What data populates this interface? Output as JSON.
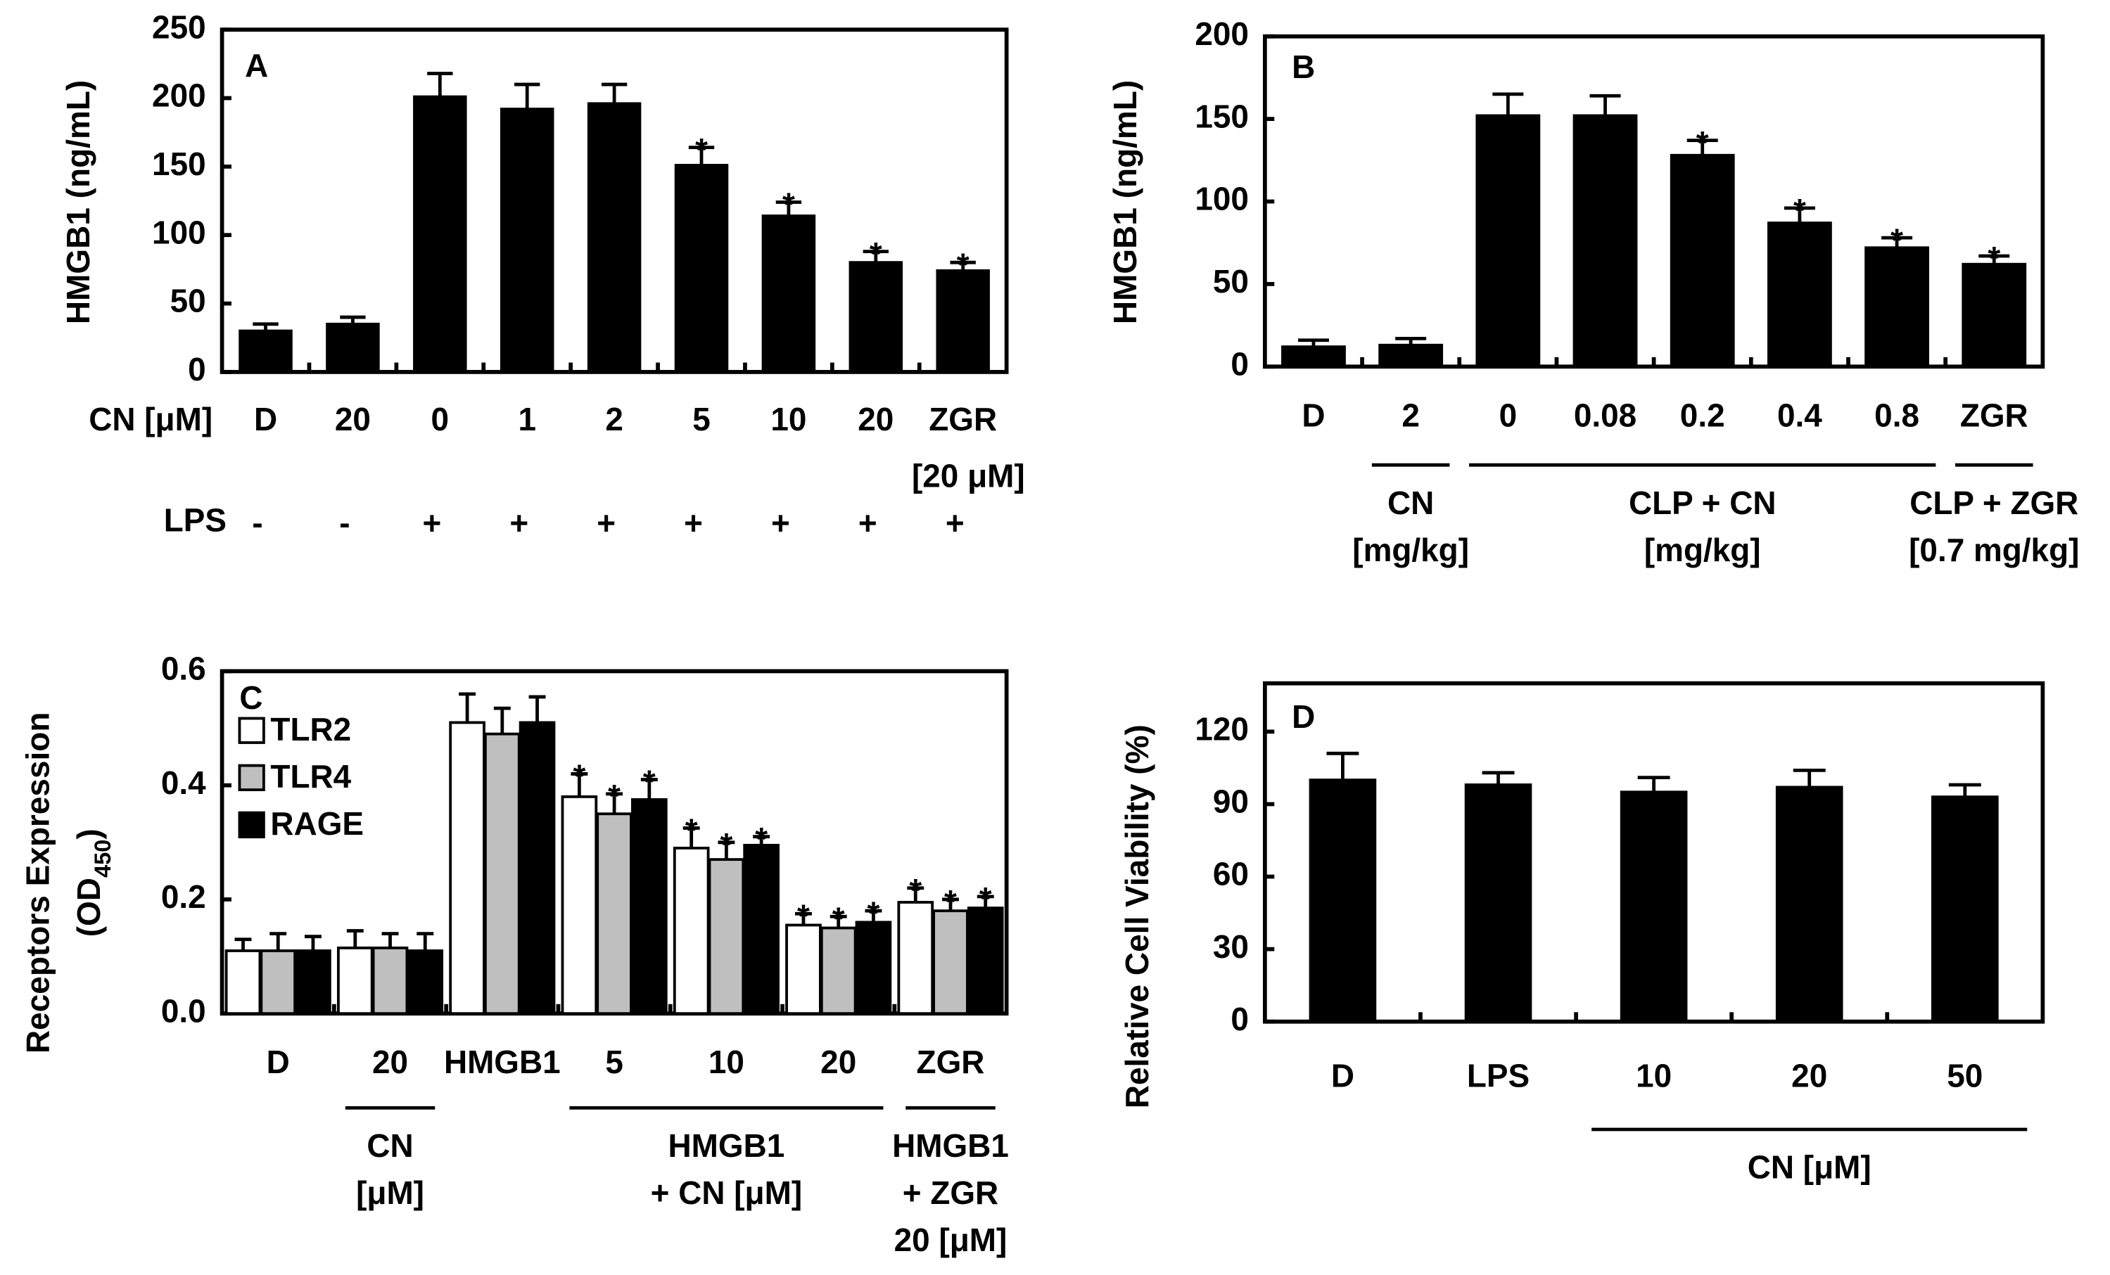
{
  "chart_data": [
    {
      "type": "bar",
      "panel": "A",
      "ylabel": "HMGB1 (ng/mL)",
      "xlabel": "CN [μM]",
      "categories": [
        "D",
        "20",
        "0",
        "1",
        "2",
        "5",
        "10",
        "20",
        "ZGR"
      ],
      "category_note": "[20 μM]",
      "values": [
        30,
        35,
        201,
        192,
        196,
        151,
        114,
        80,
        74
      ],
      "errors": [
        5,
        5,
        17,
        18,
        14,
        13,
        10,
        8,
        6
      ],
      "significance": [
        null,
        null,
        null,
        null,
        null,
        "*",
        "*",
        "*",
        "*"
      ],
      "color": "#000000",
      "ylim": [
        0,
        250
      ],
      "yticks": [
        0,
        50,
        100,
        150,
        200,
        250
      ],
      "treatment": {
        "label": "LPS",
        "values": [
          "-",
          "-",
          "+",
          "+",
          "+",
          "+",
          "+",
          "+",
          "+"
        ]
      }
    },
    {
      "type": "bar",
      "panel": "B",
      "ylabel": "HMGB1 (ng/mL)",
      "categories": [
        "D",
        "2",
        "0",
        "0.08",
        "0.2",
        "0.4",
        "0.8",
        "ZGR"
      ],
      "values": [
        12,
        13,
        152,
        152,
        128,
        87,
        72,
        62
      ],
      "errors": [
        4,
        4,
        13,
        12,
        9,
        9,
        6,
        5
      ],
      "significance": [
        null,
        null,
        null,
        null,
        "*",
        "*",
        "*",
        "*"
      ],
      "color": "#000000",
      "ylim": [
        0,
        200
      ],
      "yticks": [
        0,
        50,
        100,
        150,
        200
      ],
      "groups": [
        {
          "lines": [
            "CN",
            "[mg/kg]"
          ]
        },
        {
          "lines": [
            "CLP + CN",
            "[mg/kg]"
          ]
        },
        {
          "lines": [
            "CLP + ZGR",
            "[0.7 mg/kg]"
          ]
        }
      ]
    },
    {
      "type": "grouped_bar",
      "panel": "C",
      "ylabel": "Receptors Expression",
      "ylabel_unit": {
        "open": "(OD",
        "sub": "450",
        "close": ")"
      },
      "categories": [
        "D",
        "20",
        "HMGB1",
        "5",
        "10",
        "20",
        "ZGR"
      ],
      "series": [
        {
          "name": "TLR2",
          "color": "#ffffff",
          "values": [
            0.11,
            0.115,
            0.51,
            0.38,
            0.29,
            0.155,
            0.195
          ],
          "errors": [
            0.02,
            0.03,
            0.05,
            0.04,
            0.035,
            0.02,
            0.025
          ],
          "significance": [
            null,
            null,
            null,
            "*",
            "*",
            "*",
            "*"
          ]
        },
        {
          "name": "TLR4",
          "color": "#bfbfbf",
          "values": [
            0.11,
            0.115,
            0.49,
            0.35,
            0.27,
            0.15,
            0.18
          ],
          "errors": [
            0.03,
            0.025,
            0.045,
            0.035,
            0.03,
            0.02,
            0.02
          ],
          "significance": [
            null,
            null,
            null,
            "*",
            "*",
            "*",
            "*"
          ]
        },
        {
          "name": "RAGE",
          "color": "#000000",
          "values": [
            0.11,
            0.11,
            0.51,
            0.375,
            0.295,
            0.16,
            0.185
          ],
          "errors": [
            0.025,
            0.03,
            0.045,
            0.035,
            0.015,
            0.02,
            0.02
          ],
          "significance": [
            null,
            null,
            null,
            "*",
            "*",
            "*",
            "*"
          ]
        }
      ],
      "ylim": [
        0,
        0.6
      ],
      "yticks": [
        {
          "value": 0,
          "label": "0.0"
        },
        0.2,
        0.4,
        0.6
      ],
      "groups": [
        {
          "lines": [
            "CN",
            "[μM]"
          ]
        },
        {
          "lines": [
            "HMGB1",
            "+ CN [μM]"
          ]
        },
        {
          "lines": [
            "HMGB1",
            "+ ZGR",
            "20 [μM]"
          ]
        }
      ]
    },
    {
      "type": "bar",
      "panel": "D",
      "ylabel": "Relative Cell Viability (%)",
      "categories": [
        "D",
        "LPS",
        "10",
        "20",
        "50"
      ],
      "values": [
        100,
        98,
        95,
        97,
        93
      ],
      "errors": [
        11,
        5,
        6,
        7,
        5
      ],
      "color": "#000000",
      "ylim": [
        0,
        140
      ],
      "yticks": [
        0,
        30,
        60,
        90,
        120
      ],
      "groups": [
        {
          "lines": [
            "CN [μM]"
          ]
        }
      ]
    }
  ]
}
